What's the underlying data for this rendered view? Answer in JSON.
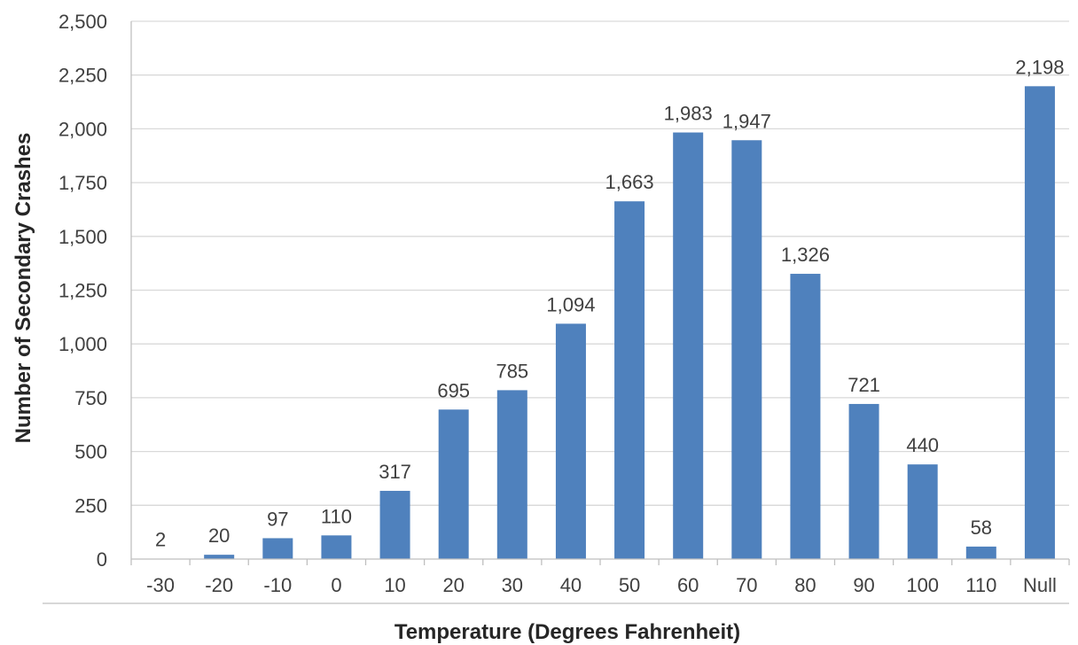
{
  "chart_data": {
    "type": "bar",
    "title": "",
    "xlabel": "Temperature (Degrees Fahrenheit)",
    "ylabel": "Number of Secondary Crashes",
    "categories": [
      "-30",
      "-20",
      "-10",
      "0",
      "10",
      "20",
      "30",
      "40",
      "50",
      "60",
      "70",
      "80",
      "90",
      "100",
      "110",
      "Null"
    ],
    "values": [
      2,
      20,
      97,
      110,
      317,
      695,
      785,
      1094,
      1663,
      1983,
      1947,
      1326,
      721,
      440,
      58,
      2198
    ],
    "value_labels": [
      "2",
      "20",
      "97",
      "110",
      "317",
      "695",
      "785",
      "1,094",
      "1,663",
      "1,983",
      "1,947",
      "1,326",
      "721",
      "440",
      "58",
      "2,198"
    ],
    "yticks": [
      0,
      250,
      500,
      750,
      1000,
      1250,
      1500,
      1750,
      2000,
      2250,
      2500
    ],
    "ytick_labels": [
      "0",
      "250",
      "500",
      "750",
      "1,000",
      "1,250",
      "1,500",
      "1,750",
      "2,000",
      "2,250",
      "2,500"
    ],
    "ylim": [
      0,
      2500
    ],
    "grid": true,
    "legend": "none",
    "colors": {
      "bar": "#4f81bd",
      "grid": "#d9d9d9",
      "axis": "#bfbfbf",
      "text": "#404040"
    }
  }
}
